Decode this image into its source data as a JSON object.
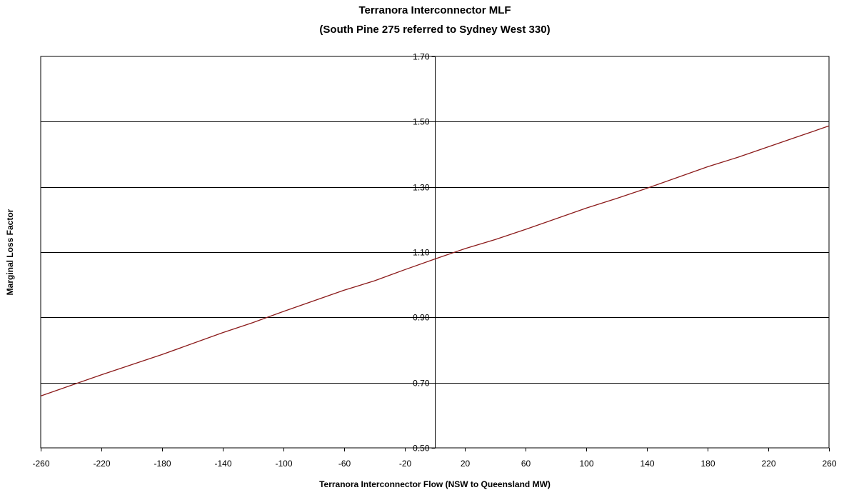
{
  "chart_data": {
    "type": "line",
    "title": "Terranora Interconnector MLF",
    "subtitle": "(South Pine 275 referred to Sydney West 330)",
    "xlabel": "Terranora Interconnector Flow (NSW to Queensland MW)",
    "ylabel": "Marginal Loss Factor",
    "xlim": [
      -260,
      260
    ],
    "ylim": [
      0.5,
      1.7
    ],
    "x_ticks": [
      -260,
      -220,
      -180,
      -140,
      -100,
      -60,
      -20,
      20,
      60,
      100,
      140,
      180,
      220,
      260
    ],
    "x_tick_labels": [
      "-260",
      "-220",
      "-180",
      "-140",
      "-100",
      "-60",
      "-20",
      "20",
      "60",
      "100",
      "140",
      "180",
      "220",
      "260"
    ],
    "y_ticks": [
      0.5,
      0.7,
      0.9,
      1.1,
      1.3,
      1.5,
      1.7
    ],
    "y_tick_labels": [
      "0.50",
      "0.70",
      "0.90",
      "1.10",
      "1.30",
      "1.50",
      "1.70"
    ],
    "grid": "horizontal",
    "legend": "none",
    "series": [
      {
        "color": "#8b1a1a",
        "x": [
          -260,
          -220,
          -180,
          -140,
          -120,
          -100,
          -60,
          -40,
          -20,
          0,
          20,
          40,
          60,
          100,
          120,
          140,
          180,
          200,
          240,
          260
        ],
        "y": [
          0.659,
          0.724,
          0.786,
          0.853,
          0.884,
          0.918,
          0.983,
          1.012,
          1.046,
          1.079,
          1.111,
          1.139,
          1.17,
          1.235,
          1.265,
          1.296,
          1.362,
          1.391,
          1.455,
          1.487
        ]
      }
    ]
  }
}
